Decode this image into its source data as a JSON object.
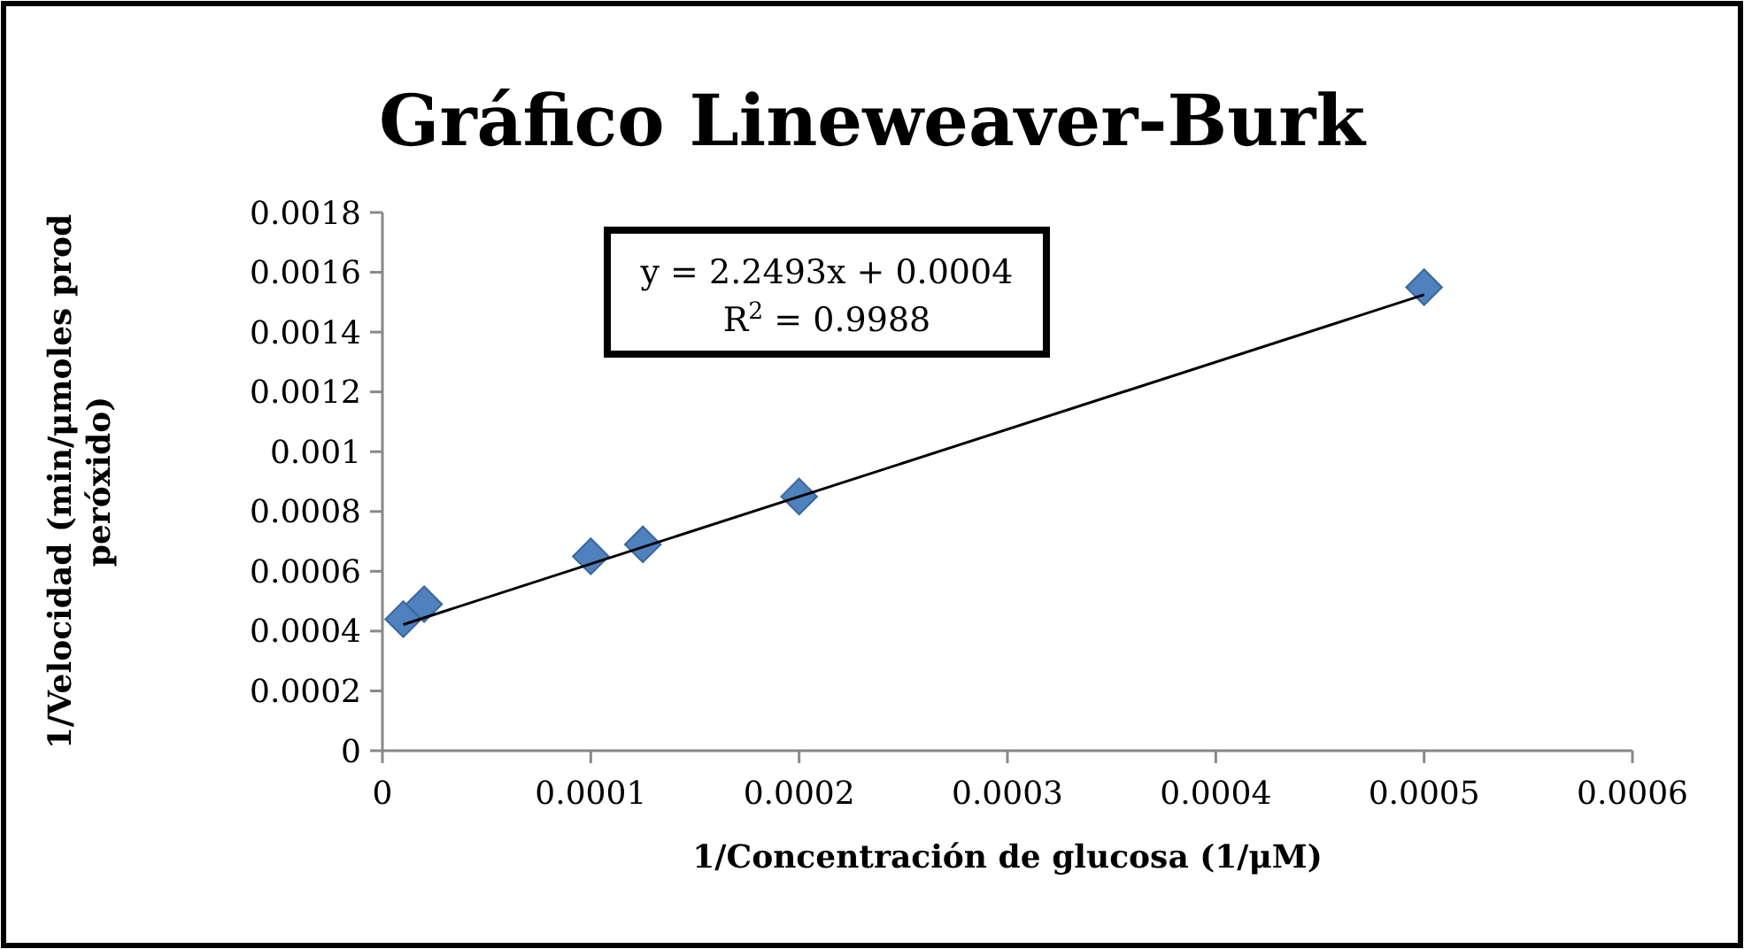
{
  "chart_data": {
    "type": "scatter",
    "title": "Gráfico Lineweaver-Burk",
    "xlabel": "1/Concentración de glucosa (1/μM)",
    "ylabel": "1/Velocidad (min/μmoles prod peróxido)",
    "x": [
      1e-05,
      2e-05,
      0.0001,
      0.000125,
      0.0002,
      0.0005
    ],
    "series": [
      {
        "color": "#4f81bd",
        "marker": "diamond",
        "values": [
          0.00044,
          0.00049,
          0.00065,
          0.00069,
          0.00085,
          0.00155
        ]
      },
      {
        "type": "line",
        "color": "#000000",
        "marker": "none",
        "x": [
          1e-05,
          0.0005
        ],
        "values": [
          0.000422,
          0.001525
        ]
      }
    ],
    "grid": false,
    "xlim": [
      0,
      0.0006
    ],
    "xticks": [
      0,
      0.0001,
      0.0002,
      0.0003,
      0.0004,
      0.0005,
      0.0006
    ],
    "ylim": [
      0,
      0.0018
    ],
    "yticks": [
      0,
      0.0002,
      0.0004,
      0.0006,
      0.0008,
      0.001,
      0.0012,
      0.0014,
      0.0016,
      0.0018
    ],
    "annotations": [
      "y = 2.2493x + 0.0004",
      "R$^{2}$ = 0.9988"
    ]
  }
}
